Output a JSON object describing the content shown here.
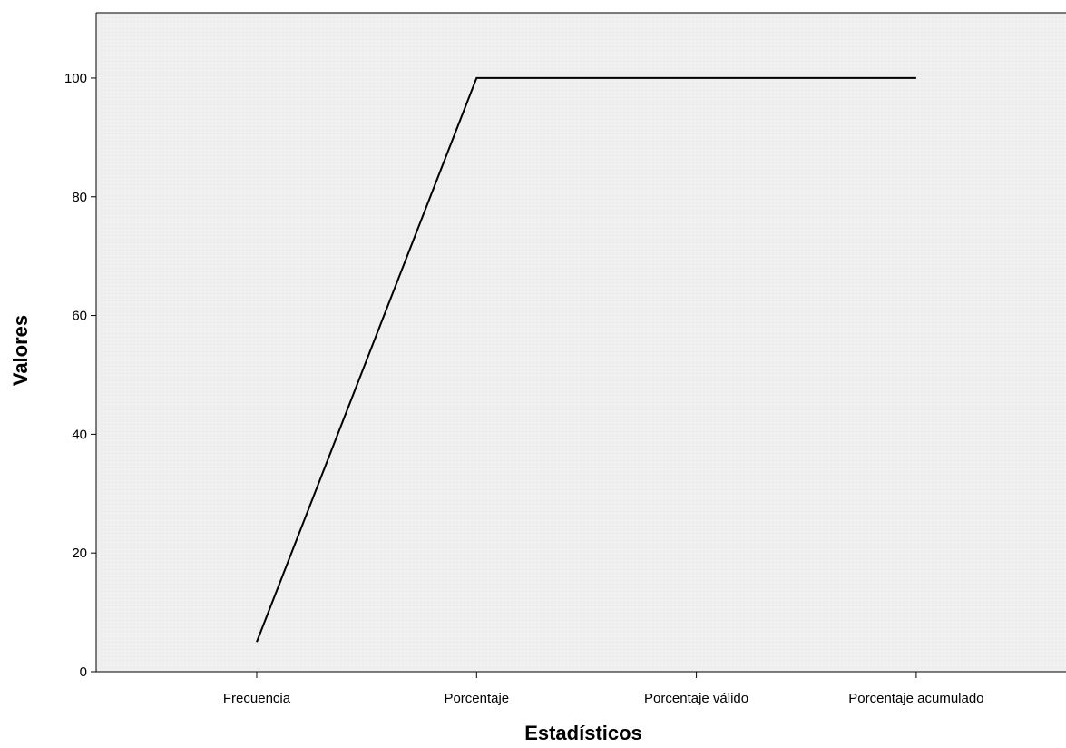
{
  "chart_data": {
    "type": "line",
    "title": "",
    "xlabel": "Estadísticos",
    "ylabel": "Valores",
    "categories": [
      "Frecuencia",
      "Porcentaje",
      "Porcentaje válido",
      "Porcentaje acumulado"
    ],
    "series": [
      {
        "values": [
          5,
          100,
          100,
          100
        ]
      }
    ],
    "ylim": [
      0,
      111
    ],
    "yticks": [
      0,
      20,
      40,
      60,
      80,
      100
    ],
    "grid": false,
    "legend": "none",
    "colors": {
      "background": "#eeeeee",
      "line": "#000000",
      "axis": "#000000"
    }
  }
}
